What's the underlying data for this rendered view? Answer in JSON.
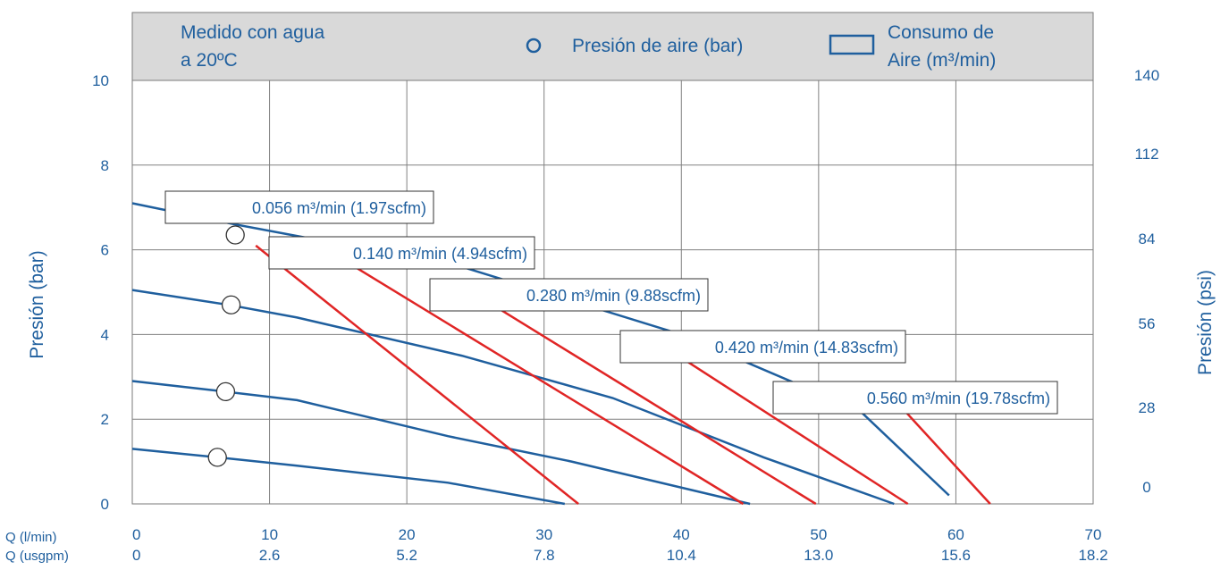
{
  "chart_data": {
    "type": "line",
    "header": {
      "note_line1": "Medido con agua",
      "note_line2": "a 20ºC",
      "legend_circle_label": "Presión de aire (bar)",
      "legend_rect_line1": "Consumo de",
      "legend_rect_line2": "Aire (m³/min)"
    },
    "ylabel_left": "Presión (bar)",
    "ylabel_right": "Presión (psi)",
    "xlabel_lmin": "Q (l/min)",
    "xlabel_usgpm": "Q (usgpm)",
    "x_ticks_lmin": [
      "0",
      "10",
      "20",
      "30",
      "40",
      "50",
      "60",
      "70"
    ],
    "x_ticks_usgpm": [
      "0",
      "2.6",
      "5.2",
      "7.8",
      "10.4",
      "13.0",
      "15.6",
      "18.2"
    ],
    "y_ticks_bar": [
      "0",
      "2",
      "4",
      "6",
      "8",
      "10"
    ],
    "y_ticks_psi": [
      "0",
      "28",
      "56",
      "84",
      "112",
      "140"
    ],
    "xlim": [
      0,
      70
    ],
    "ylim": [
      0,
      10
    ],
    "grid": true,
    "colors": {
      "pressure": "#1f5f9e",
      "consumption": "#e02525",
      "grid": "#808080",
      "header_bg": "#d9d9d9"
    },
    "pressure_curves": [
      {
        "x": [
          0,
          7.5,
          24,
          40,
          53,
          59.5
        ],
        "y": [
          7.1,
          6.6,
          5.6,
          4.0,
          2.2,
          0.2
        ]
      },
      {
        "x": [
          0,
          7.0,
          12,
          24,
          35,
          46,
          55.5
        ],
        "y": [
          5.05,
          4.7,
          4.4,
          3.5,
          2.5,
          1.1,
          0.0
        ]
      },
      {
        "x": [
          0,
          6.8,
          12,
          23,
          32,
          45
        ],
        "y": [
          2.9,
          2.65,
          2.45,
          1.6,
          1.0,
          0.0
        ]
      },
      {
        "x": [
          0,
          6.2,
          12,
          23,
          31.5
        ],
        "y": [
          1.3,
          1.1,
          0.9,
          0.5,
          0.0
        ]
      }
    ],
    "air_pressure_markers": [
      {
        "x": 7.5,
        "y": 6.35
      },
      {
        "x": 7.2,
        "y": 4.7
      },
      {
        "x": 6.8,
        "y": 2.65
      },
      {
        "x": 6.2,
        "y": 1.1
      }
    ],
    "consumption_lines": [
      {
        "label": "0.056 m³/min (1.97scfm)",
        "x": [
          9.0,
          32.5
        ],
        "y": [
          6.1,
          0.0
        ]
      },
      {
        "label": "0.140 m³/min (4.94scfm)",
        "x": [
          16.2,
          44.5
        ],
        "y": [
          5.6,
          0.0
        ]
      },
      {
        "label": "0.280 m³/min (9.88scfm)",
        "x": [
          26,
          49.8
        ],
        "y": [
          4.75,
          0.0
        ]
      },
      {
        "label": "0.420 m³/min (14.83scfm)",
        "x": [
          40,
          56.5
        ],
        "y": [
          3.45,
          0.0
        ]
      },
      {
        "label": "0.560 m³/min (19.78scfm)",
        "x": [
          55.7,
          62.5
        ],
        "y": [
          2.4,
          0.0
        ]
      }
    ]
  }
}
